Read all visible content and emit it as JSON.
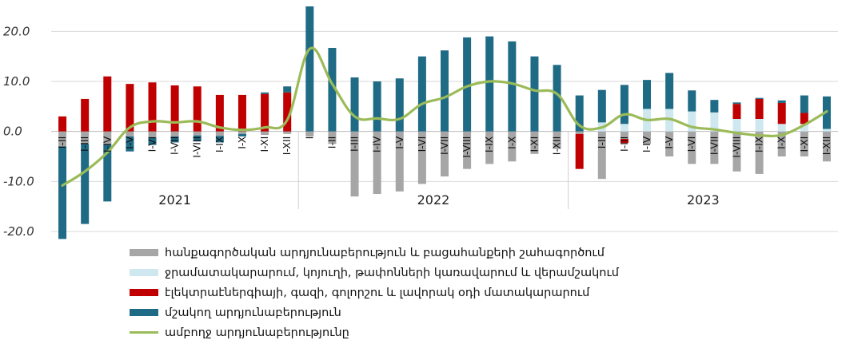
{
  "chart_data": {
    "type": "bar",
    "stacked": true,
    "categories": [
      "I-II",
      "I-III",
      "I-IV",
      "I-V",
      "I-VI",
      "I-VII",
      "I-VIII",
      "I-IX",
      "I-X",
      "I-XI",
      "I-XII",
      "I",
      "I-II",
      "I-III",
      "I-IV",
      "I-V",
      "I-VI",
      "I-VII",
      "I-VIII",
      "I-IX",
      "I-X",
      "I-XI",
      "I-XII",
      "I",
      "I-II",
      "I-III",
      "I-IV",
      "I-V",
      "I-VI",
      "I-VII",
      "I-VIII",
      "I-IX",
      "I-X",
      "I-XI",
      "I-XII"
    ],
    "display_categories": [
      "I-II",
      "I-III",
      "I-IV",
      "I-V",
      "I-VI",
      "I-VII",
      "I-VIII",
      "I-IX",
      "I-X",
      "I-XI",
      "I-XII",
      "I",
      "I-II",
      "I-III",
      "I-IV",
      "I-V",
      "I-VI",
      "I-VII",
      "I-VIII",
      "I-IX",
      "I-X",
      "I-XI",
      "I-XII",
      "",
      "I-II",
      "I-III",
      "I-IV",
      "I-V",
      "I-VI",
      "I-VII",
      "I-VIII",
      "I-IX",
      "I-X",
      "I-XI",
      "I-XII"
    ],
    "year_groups": [
      {
        "label": "2021",
        "start": 0,
        "count": 11
      },
      {
        "label": "2022",
        "start": 11,
        "count": 12
      },
      {
        "label": "2023",
        "start": 23,
        "count": 12
      }
    ],
    "ylim": [
      -20,
      25
    ],
    "yticks": [
      -20,
      -10,
      0,
      10,
      20
    ],
    "ytick_labels": [
      "-20.0",
      "-10.0",
      "0.0",
      "10.0",
      "20.0"
    ],
    "grid": true,
    "series": [
      {
        "name": "հանքագործական  արդյունաբերություն  և բացահանքերի  շահագործում",
        "kind": "bar",
        "color": "#a6a6a6",
        "values": [
          -3.0,
          -2.5,
          -2.5,
          -1.0,
          -1.2,
          -1.0,
          -0.8,
          -0.9,
          -0.5,
          -0.7,
          -0.5,
          -1.0,
          -2.5,
          -13.0,
          -12.5,
          -12.0,
          -10.5,
          -9.0,
          -7.5,
          -6.5,
          -6.0,
          -4.5,
          -3.5,
          -0.5,
          -9.5,
          -1.5,
          -2.5,
          -5.0,
          -6.5,
          -6.5,
          -8.0,
          -8.5,
          -5.0,
          -5.0,
          -6.0
        ]
      },
      {
        "name": "ջրամատակարարում, կոյուղի, թափոնների կառավարում և վերամշակում",
        "kind": "bar",
        "color": "#cfe8f0",
        "values": [
          0,
          0,
          0,
          0,
          0,
          0,
          0,
          0,
          0,
          0,
          0,
          0,
          0,
          0,
          0,
          0,
          0,
          0,
          0,
          0,
          0,
          0,
          0,
          0,
          1.8,
          1.5,
          4.5,
          4.5,
          4.0,
          3.8,
          2.5,
          2.5,
          1.5,
          1.5,
          0.5
        ]
      },
      {
        "name": "էլեկտրաէներգիայի, գազի, գոլորշու և լավորակ օդի մատակարարում",
        "kind": "bar",
        "color": "#c00000",
        "values": [
          3.0,
          6.5,
          11.0,
          9.5,
          9.8,
          9.2,
          9.0,
          7.3,
          7.3,
          7.5,
          7.8,
          0,
          0,
          0,
          0,
          0,
          0,
          0,
          0,
          0,
          0,
          0,
          0,
          -7.0,
          0,
          -0.8,
          0,
          0,
          0,
          0,
          3.0,
          4.0,
          4.2,
          2.2,
          0
        ]
      },
      {
        "name": "մշակող  արդյունաբերություն",
        "kind": "bar",
        "color": "#1f6b85",
        "values": [
          -18.5,
          -16.0,
          -11.5,
          -3.0,
          -1.5,
          -1.2,
          -1.2,
          -1.3,
          -0.5,
          0.3,
          1.2,
          25.0,
          16.7,
          10.8,
          10.0,
          10.6,
          15.0,
          16.2,
          18.8,
          19.0,
          18.0,
          15.0,
          13.3,
          7.2,
          6.5,
          7.8,
          5.8,
          7.2,
          4.2,
          2.5,
          0.3,
          0.2,
          0.5,
          3.5,
          6.5
        ]
      },
      {
        "name": "ամբողջ արդյունաբերությունը",
        "kind": "line",
        "color": "#9bbb59",
        "values": [
          -10.8,
          -8.0,
          -4.2,
          0.8,
          2.0,
          1.8,
          2.0,
          0.8,
          0.3,
          0.8,
          2.3,
          16.5,
          9.5,
          3.0,
          2.6,
          2.5,
          5.5,
          6.8,
          9.0,
          10.0,
          9.6,
          8.2,
          7.5,
          1.2,
          0.8,
          3.4,
          2.3,
          2.5,
          0.9,
          0.4,
          -0.3,
          -0.8,
          -0.7,
          1.3,
          4.0
        ]
      }
    ]
  }
}
